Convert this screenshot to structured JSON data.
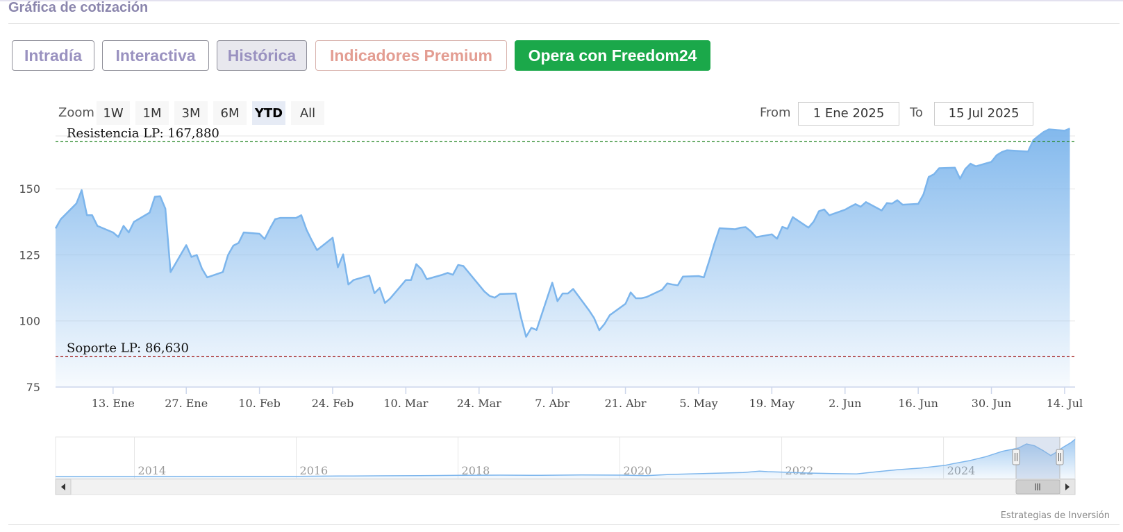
{
  "header": {
    "title": "Gráfica de cotización"
  },
  "tabs": [
    {
      "label": "Intradía",
      "style": "normal"
    },
    {
      "label": "Interactiva",
      "style": "normal"
    },
    {
      "label": "Histórica",
      "style": "active"
    },
    {
      "label": "Indicadores Premium",
      "style": "premium"
    },
    {
      "label": "Opera con Freedom24",
      "style": "cta"
    }
  ],
  "zoom": {
    "label": "Zoom",
    "buttons": [
      "1W",
      "1M",
      "3M",
      "6M",
      "YTD",
      "All"
    ],
    "selected": "YTD"
  },
  "range": {
    "from_label": "From",
    "from_value": "1 Ene 2025",
    "to_label": "To",
    "to_value": "15 Jul 2025"
  },
  "credits": "Estrategias de Inversión",
  "colors": {
    "series": "#7cb5ec",
    "resistance": "#2a8a2a",
    "support": "#a01818",
    "cta": "#1ba84a",
    "accent": "#9a92c0"
  },
  "chart_data": {
    "type": "area",
    "title": "",
    "grid": true,
    "x_start": "2025-01-02",
    "x_end": "2025-07-16",
    "ylim": [
      75,
      170
    ],
    "yticks": [
      75,
      100,
      125,
      150
    ],
    "xticks": [
      {
        "date": "2025-01-13",
        "label": "13. Ene"
      },
      {
        "date": "2025-01-27",
        "label": "27. Ene"
      },
      {
        "date": "2025-02-10",
        "label": "10. Feb"
      },
      {
        "date": "2025-02-24",
        "label": "24. Feb"
      },
      {
        "date": "2025-03-10",
        "label": "10. Mar"
      },
      {
        "date": "2025-03-24",
        "label": "24. Mar"
      },
      {
        "date": "2025-04-07",
        "label": "7. Abr"
      },
      {
        "date": "2025-04-21",
        "label": "21. Abr"
      },
      {
        "date": "2025-05-05",
        "label": "5. May"
      },
      {
        "date": "2025-05-19",
        "label": "19. May"
      },
      {
        "date": "2025-06-02",
        "label": "2. Jun"
      },
      {
        "date": "2025-06-16",
        "label": "16. Jun"
      },
      {
        "date": "2025-06-30",
        "label": "30. Jun"
      },
      {
        "date": "2025-07-14",
        "label": "14. Jul"
      }
    ],
    "series": [
      {
        "values": [
          [
            "2025-01-02",
            135
          ],
          [
            "2025-01-03",
            138.5
          ],
          [
            "2025-01-06",
            144.5
          ],
          [
            "2025-01-07",
            149.5
          ],
          [
            "2025-01-08",
            140
          ],
          [
            "2025-01-09",
            140
          ],
          [
            "2025-01-10",
            136
          ],
          [
            "2025-01-13",
            133.5
          ],
          [
            "2025-01-14",
            131.8
          ],
          [
            "2025-01-15",
            136
          ],
          [
            "2025-01-16",
            133.5
          ],
          [
            "2025-01-17",
            137.5
          ],
          [
            "2025-01-20",
            141
          ],
          [
            "2025-01-21",
            147
          ],
          [
            "2025-01-22",
            147.2
          ],
          [
            "2025-01-23",
            142.5
          ],
          [
            "2025-01-24",
            118.5
          ],
          [
            "2025-01-27",
            128.7
          ],
          [
            "2025-01-28",
            124.2
          ],
          [
            "2025-01-29",
            125
          ],
          [
            "2025-01-30",
            119.8
          ],
          [
            "2025-01-31",
            116.5
          ],
          [
            "2025-02-03",
            118.5
          ],
          [
            "2025-02-04",
            125
          ],
          [
            "2025-02-05",
            128.5
          ],
          [
            "2025-02-06",
            129.5
          ],
          [
            "2025-02-07",
            133.5
          ],
          [
            "2025-02-10",
            133
          ],
          [
            "2025-02-11",
            131
          ],
          [
            "2025-02-12",
            135
          ],
          [
            "2025-02-13",
            138.5
          ],
          [
            "2025-02-14",
            139
          ],
          [
            "2025-02-17",
            139
          ],
          [
            "2025-02-18",
            140
          ],
          [
            "2025-02-19",
            134.5
          ],
          [
            "2025-02-20",
            130.5
          ],
          [
            "2025-02-21",
            126.8
          ],
          [
            "2025-02-24",
            131.5
          ],
          [
            "2025-02-25",
            120.3
          ],
          [
            "2025-02-26",
            125.2
          ],
          [
            "2025-02-27",
            113.8
          ],
          [
            "2025-02-28",
            115.5
          ],
          [
            "2025-03-03",
            117.2
          ],
          [
            "2025-03-04",
            110.5
          ],
          [
            "2025-03-05",
            112.5
          ],
          [
            "2025-03-06",
            106.8
          ],
          [
            "2025-03-07",
            108.5
          ],
          [
            "2025-03-10",
            115.5
          ],
          [
            "2025-03-11",
            115.5
          ],
          [
            "2025-03-12",
            121.5
          ],
          [
            "2025-03-13",
            119.5
          ],
          [
            "2025-03-14",
            115.8
          ],
          [
            "2025-03-17",
            117.5
          ],
          [
            "2025-03-18",
            118.2
          ],
          [
            "2025-03-19",
            117.5
          ],
          [
            "2025-03-20",
            121.2
          ],
          [
            "2025-03-21",
            120.8
          ],
          [
            "2025-03-24",
            113.6
          ],
          [
            "2025-03-25",
            111.2
          ],
          [
            "2025-03-26",
            109.5
          ],
          [
            "2025-03-27",
            108.8
          ],
          [
            "2025-03-28",
            110.2
          ],
          [
            "2025-03-31",
            110.4
          ],
          [
            "2025-04-01",
            101.5
          ],
          [
            "2025-04-02",
            94
          ],
          [
            "2025-04-03",
            97.4
          ],
          [
            "2025-04-04",
            96.6
          ],
          [
            "2025-04-07",
            114.5
          ],
          [
            "2025-04-08",
            107.5
          ],
          [
            "2025-04-09",
            110.4
          ],
          [
            "2025-04-10",
            110.4
          ],
          [
            "2025-04-11",
            112.1
          ],
          [
            "2025-04-14",
            104.1
          ],
          [
            "2025-04-15",
            101.1
          ],
          [
            "2025-04-16",
            96.5
          ],
          [
            "2025-04-17",
            98.9
          ],
          [
            "2025-04-18",
            102.2
          ],
          [
            "2025-04-21",
            106.5
          ],
          [
            "2025-04-22",
            110.8
          ],
          [
            "2025-04-23",
            108.6
          ],
          [
            "2025-04-24",
            108.6
          ],
          [
            "2025-04-25",
            109
          ],
          [
            "2025-04-28",
            111.8
          ],
          [
            "2025-04-29",
            114.2
          ],
          [
            "2025-04-30",
            113.8
          ],
          [
            "2025-05-01",
            113.5
          ],
          [
            "2025-05-02",
            116.8
          ],
          [
            "2025-05-05",
            117
          ],
          [
            "2025-05-06",
            116.5
          ],
          [
            "2025-05-07",
            122.6
          ],
          [
            "2025-05-08",
            129.3
          ],
          [
            "2025-05-09",
            135.1
          ],
          [
            "2025-05-12",
            134.7
          ],
          [
            "2025-05-13",
            135.3
          ],
          [
            "2025-05-14",
            135.5
          ],
          [
            "2025-05-15",
            133.9
          ],
          [
            "2025-05-16",
            131.7
          ],
          [
            "2025-05-19",
            132.8
          ],
          [
            "2025-05-20",
            131.1
          ],
          [
            "2025-05-21",
            135.6
          ],
          [
            "2025-05-22",
            134.9
          ],
          [
            "2025-05-23",
            139.3
          ],
          [
            "2025-05-26",
            135.3
          ],
          [
            "2025-05-27",
            137.6
          ],
          [
            "2025-05-28",
            141.5
          ],
          [
            "2025-05-29",
            142.2
          ],
          [
            "2025-05-30",
            140
          ],
          [
            "2025-06-02",
            142.1
          ],
          [
            "2025-06-03",
            143.2
          ],
          [
            "2025-06-04",
            144.2
          ],
          [
            "2025-06-05",
            143.2
          ],
          [
            "2025-06-06",
            145
          ],
          [
            "2025-06-09",
            141.8
          ],
          [
            "2025-06-10",
            144.6
          ],
          [
            "2025-06-11",
            144.4
          ],
          [
            "2025-06-12",
            145.7
          ],
          [
            "2025-06-13",
            144
          ],
          [
            "2025-06-16",
            144.3
          ],
          [
            "2025-06-17",
            147.9
          ],
          [
            "2025-06-18",
            154.5
          ],
          [
            "2025-06-19",
            155.5
          ],
          [
            "2025-06-20",
            157.8
          ],
          [
            "2025-06-23",
            158
          ],
          [
            "2025-06-24",
            153.8
          ],
          [
            "2025-06-25",
            157.5
          ],
          [
            "2025-06-26",
            159.5
          ],
          [
            "2025-06-27",
            158.5
          ],
          [
            "2025-06-30",
            160.2
          ],
          [
            "2025-07-01",
            162.7
          ],
          [
            "2025-07-02",
            163.9
          ],
          [
            "2025-07-03",
            164.6
          ],
          [
            "2025-07-07",
            164.1
          ],
          [
            "2025-07-08",
            168.4
          ],
          [
            "2025-07-09",
            170
          ],
          [
            "2025-07-10",
            171.5
          ],
          [
            "2025-07-11",
            172.5
          ],
          [
            "2025-07-14",
            172
          ],
          [
            "2025-07-15",
            172.8
          ]
        ]
      }
    ],
    "annotations": [
      {
        "text": "Resistencia LP: 167,880",
        "value": 167.88,
        "color": "#2a8a2a"
      },
      {
        "text": "Soporte LP: 86,630",
        "value": 86.63,
        "color": "#a01818"
      }
    ],
    "navigator": {
      "labels": [
        "2014",
        "2016",
        "2018",
        "2020",
        "2022",
        "2024"
      ],
      "values": [
        [
          2013.0,
          9
        ],
        [
          2014.0,
          9
        ],
        [
          2015.0,
          9.5
        ],
        [
          2016.0,
          10
        ],
        [
          2016.5,
          11
        ],
        [
          2017.0,
          12
        ],
        [
          2017.5,
          13
        ],
        [
          2018.0,
          14
        ],
        [
          2018.5,
          15
        ],
        [
          2019.0,
          14
        ],
        [
          2019.5,
          16
        ],
        [
          2020.0,
          15
        ],
        [
          2020.3,
          13
        ],
        [
          2020.6,
          18
        ],
        [
          2021.0,
          22
        ],
        [
          2021.5,
          26
        ],
        [
          2021.7,
          32
        ],
        [
          2021.8,
          30
        ],
        [
          2022.0,
          28
        ],
        [
          2022.3,
          24
        ],
        [
          2022.6,
          22
        ],
        [
          2022.9,
          20
        ],
        [
          2023.1,
          28
        ],
        [
          2023.4,
          38
        ],
        [
          2023.7,
          46
        ],
        [
          2024.0,
          58
        ],
        [
          2024.1,
          65
        ],
        [
          2024.3,
          78
        ],
        [
          2024.5,
          95
        ],
        [
          2024.7,
          118
        ],
        [
          2024.9,
          132
        ],
        [
          2025.0,
          150
        ],
        [
          2025.1,
          142
        ],
        [
          2025.2,
          122
        ],
        [
          2025.3,
          100
        ],
        [
          2025.35,
          110
        ],
        [
          2025.45,
          135
        ],
        [
          2025.55,
          156
        ],
        [
          2025.6,
          170
        ]
      ]
    }
  }
}
